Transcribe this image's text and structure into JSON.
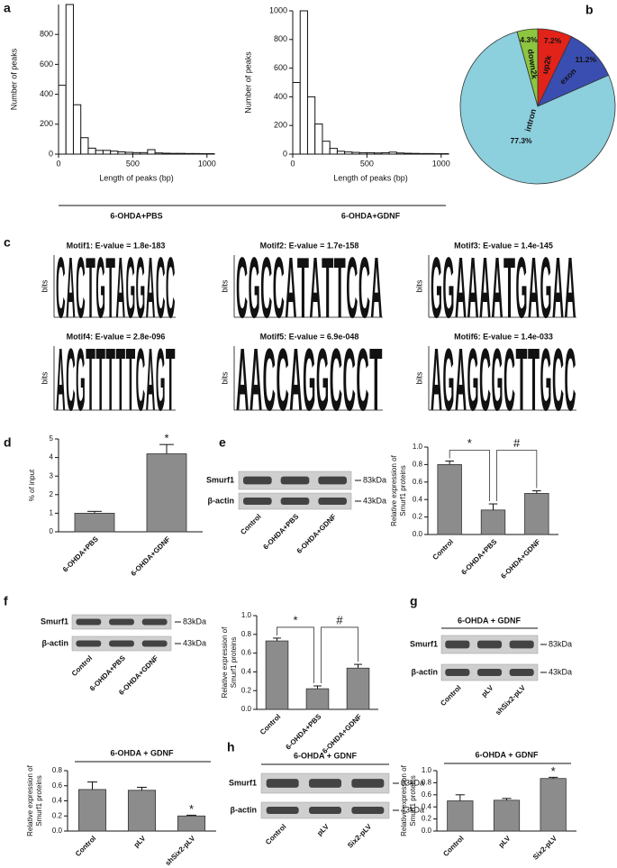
{
  "panel_labels": [
    "a",
    "b",
    "c",
    "d",
    "e",
    "f",
    "g",
    "h"
  ],
  "chart_data": [
    {
      "type": "histogram",
      "ylabel": "Number of peaks",
      "xlabel": "Length of peaks (bp)",
      "group_label": "6-OHDA+PBS",
      "bins": [
        0,
        50,
        100,
        150,
        200,
        250,
        300,
        350,
        400,
        450,
        500,
        550,
        600,
        650,
        700,
        750,
        800,
        850,
        900,
        950,
        1000,
        1050
      ],
      "values": [
        460,
        1000,
        330,
        110,
        40,
        25,
        25,
        20,
        15,
        12,
        10,
        10,
        30,
        8,
        6,
        5,
        5,
        4,
        4,
        3,
        3
      ],
      "xlim": [
        0,
        1050
      ],
      "ylim": [
        0,
        1000
      ],
      "xticks": [
        0,
        500,
        1000
      ],
      "yticks": [
        0,
        200,
        400,
        600,
        800
      ],
      "color": "#ffffff"
    },
    {
      "type": "histogram",
      "ylabel": "Number of peaks",
      "xlabel": "Length of peaks (bp)",
      "group_label": "6-OHDA+GDNF",
      "bins": [
        0,
        50,
        100,
        150,
        200,
        250,
        300,
        350,
        400,
        450,
        500,
        550,
        600,
        650,
        700,
        750,
        800,
        850,
        900,
        950,
        1000,
        1050
      ],
      "values": [
        500,
        1000,
        400,
        210,
        90,
        40,
        20,
        15,
        12,
        10,
        10,
        8,
        10,
        14,
        8,
        6,
        5,
        4,
        4,
        3,
        3
      ],
      "xlim": [
        0,
        1050
      ],
      "ylim": [
        0,
        1000
      ],
      "xticks": [
        0,
        500,
        1000
      ],
      "yticks": [
        0,
        200,
        400,
        600,
        800,
        1000
      ],
      "color": "#ffffff"
    },
    {
      "type": "pie",
      "categories": [
        "up2k",
        "exon",
        "intron",
        "down2k"
      ],
      "values": [
        7.2,
        11.2,
        77.3,
        4.3
      ],
      "value_labels": [
        "7.2%",
        "11.2%",
        "77.3%",
        "4.3%"
      ],
      "colors": [
        "#e2231a",
        "#3a4db0",
        "#8ccfdd",
        "#8cc63f"
      ]
    },
    {
      "type": "bar",
      "ylabel": [
        "% of input"
      ],
      "categories": [
        "6-OHDA+PBS",
        "6-OHDA+GDNF"
      ],
      "values": [
        1.0,
        4.2
      ],
      "errors": [
        0.1,
        0.5
      ],
      "ylim": [
        0,
        5
      ],
      "yticks": [
        0,
        1,
        2,
        3,
        4,
        5
      ],
      "color": "#8c8c8c",
      "stars": [
        {
          "text": "*",
          "category": "6-OHDA+GDNF"
        }
      ]
    },
    {
      "type": "bar",
      "ylabel": [
        "Relative expression of",
        "Smurf1 proteins"
      ],
      "categories": [
        "Control",
        "6-OHDA+PBS",
        "6-OHDA+GDNF"
      ],
      "values": [
        0.8,
        0.28,
        0.47
      ],
      "errors": [
        0.04,
        0.07,
        0.03
      ],
      "ylim": [
        0,
        1
      ],
      "yticks": [
        {
          "value": 0,
          "label": "0.0"
        },
        0.2,
        0.4,
        0.6,
        0.8,
        {
          "value": 1,
          "label": "1.0"
        }
      ],
      "color": "#8c8c8c",
      "brackets": [
        {
          "text": "*",
          "from": "Control",
          "to": "6-OHDA+PBS"
        },
        {
          "text": "#",
          "from": "6-OHDA+PBS",
          "to": "6-OHDA+GDNF"
        }
      ]
    },
    {
      "type": "bar",
      "ylabel": [
        "Relative expression of",
        "Smurf1 proteins"
      ],
      "categories": [
        "Control",
        "6-OHDA+PBS",
        "6-OHDA+GDNF"
      ],
      "values": [
        0.73,
        0.22,
        0.44
      ],
      "errors": [
        0.03,
        0.03,
        0.04
      ],
      "ylim": [
        0,
        1
      ],
      "yticks": [
        {
          "value": 0,
          "label": "0.0"
        },
        0.2,
        0.4,
        0.6,
        0.8,
        {
          "value": 1,
          "label": "1.0"
        }
      ],
      "color": "#8c8c8c",
      "brackets": [
        {
          "text": "*",
          "from": "Control",
          "to": "6-OHDA+PBS"
        },
        {
          "text": "#",
          "from": "6-OHDA+PBS",
          "to": "6-OHDA+GDNF"
        }
      ]
    },
    {
      "type": "bar",
      "title": "6-OHDA + GDNF",
      "ylabel": [
        "Relative expression of",
        "Smurf1 proteins"
      ],
      "categories": [
        "Control",
        "pLV",
        "shSix2-pLV"
      ],
      "values": [
        0.55,
        0.54,
        0.2
      ],
      "errors": [
        0.1,
        0.04,
        0.01
      ],
      "ylim": [
        0,
        0.8
      ],
      "yticks": [
        {
          "value": 0,
          "label": "0.0"
        },
        0.2,
        0.4,
        0.6,
        0.8
      ],
      "color": "#8c8c8c",
      "stars": [
        {
          "text": "*",
          "category": "shSix2-pLV"
        }
      ]
    },
    {
      "type": "bar",
      "title": "6-OHDA + GDNF",
      "ylabel": [
        "Relative expression of",
        "Smurf1 proteins"
      ],
      "categories": [
        "Control",
        "pLV",
        "Six2-pLV"
      ],
      "values": [
        0.5,
        0.51,
        0.87
      ],
      "errors": [
        0.1,
        0.03,
        0.02
      ],
      "ylim": [
        0,
        1
      ],
      "yticks": [
        {
          "value": 0,
          "label": "0.0"
        },
        0.2,
        0.4,
        0.6,
        0.8,
        {
          "value": 1,
          "label": "1.0"
        }
      ],
      "color": "#8c8c8c",
      "stars": [
        {
          "text": "*",
          "category": "Six2-pLV"
        }
      ]
    }
  ],
  "motifs": [
    {
      "title": "Motif1: E-value = 1.8e-183",
      "ylabel": "bits",
      "letters": "CACTGTAGGACC"
    },
    {
      "title": "Motif2: E-value = 1.7e-158",
      "ylabel": "bits",
      "letters": "CGCCATATTCCA"
    },
    {
      "title": "Motif3: E-value = 1.4e-145",
      "ylabel": "bits",
      "letters": "GGAAAATGAGAA"
    },
    {
      "title": "Motif4: E-value = 2.8e-096",
      "ylabel": "bits",
      "letters": "ACGTTTTTCAGT"
    },
    {
      "title": "Motif5: E-value = 6.9e-048",
      "ylabel": "bits",
      "letters": "AACCAGGCCCT"
    },
    {
      "title": "Motif6: E-value = 1.4e-033",
      "ylabel": "bits",
      "letters": "AGAGCGCTTGCC"
    }
  ],
  "blots": [
    {
      "rows": [
        "Smurf1",
        "β-actin"
      ],
      "sizes": [
        "83kDa",
        "43kDa"
      ],
      "lanes": [
        "Control",
        "6-OHDA+PBS",
        "6-OHDA+GDNF"
      ]
    },
    {
      "rows": [
        "Smurf1",
        "β-actin"
      ],
      "sizes": [
        "83kDa",
        "43kDa"
      ],
      "lanes": [
        "Control",
        "6-OHDA+PBS",
        "6-OHDA+GDNF"
      ]
    },
    {
      "header": "6-OHDA + GDNF",
      "rows": [
        "Smurf1",
        "β-actin"
      ],
      "sizes": [
        "83kDa",
        "43kDa"
      ],
      "lanes": [
        "Control",
        "pLV",
        "shSix2-pLV"
      ]
    },
    {
      "header": "6-OHDA + GDNF",
      "rows": [
        "Smurf1",
        "β-actin"
      ],
      "sizes": [
        "83kDa",
        "43kDa"
      ],
      "lanes": [
        "Control",
        "pLV",
        "Six2-pLV"
      ]
    }
  ]
}
